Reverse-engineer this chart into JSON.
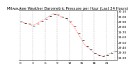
{
  "title": "Milwaukee Weather Barometric Pressure per Hour (Last 24 Hours)",
  "x_values": [
    0,
    1,
    2,
    3,
    4,
    5,
    6,
    7,
    8,
    9,
    10,
    11,
    12,
    13,
    14,
    15,
    16,
    17,
    18,
    19,
    20,
    21,
    22,
    23
  ],
  "y_values": [
    29.89,
    29.87,
    29.85,
    29.82,
    29.86,
    29.91,
    29.95,
    30.0,
    30.05,
    30.03,
    29.99,
    29.96,
    29.9,
    29.8,
    29.67,
    29.53,
    29.42,
    29.35,
    29.28,
    29.25,
    29.22,
    29.24,
    29.28,
    29.32
  ],
  "line_color": "#ff0000",
  "marker_color": "#000000",
  "background_color": "#ffffff",
  "grid_color": "#888888",
  "ylim": [
    29.15,
    30.12
  ],
  "title_fontsize": 3.8,
  "tick_fontsize": 3.2,
  "right_yticks": [
    29.2,
    29.3,
    29.4,
    29.5,
    29.6,
    29.7,
    29.8,
    29.9,
    30.0,
    30.1
  ],
  "vgrid_positions": [
    0,
    3,
    6,
    9,
    12,
    15,
    18,
    21,
    23
  ],
  "xtick_positions": [
    0,
    3,
    6,
    9,
    12,
    15,
    18,
    21
  ],
  "xtick_labels": [
    "0",
    "3",
    "6",
    "9",
    "12",
    "15",
    "18",
    "21"
  ]
}
